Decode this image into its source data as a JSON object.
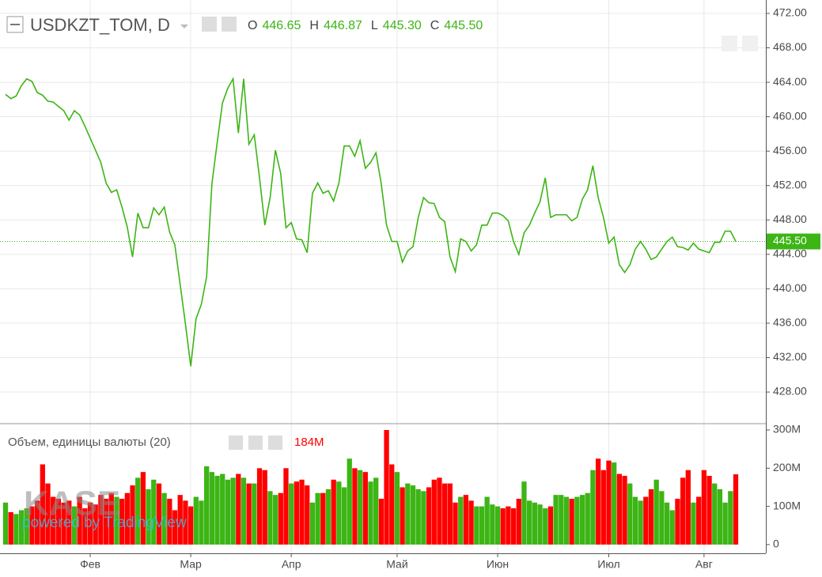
{
  "chart_data": [
    {
      "type": "line",
      "title": "USDKZT_TOM, D",
      "color": "#3cb515",
      "grid": true,
      "ohlc": {
        "labels": [
          "O",
          "H",
          "L",
          "C"
        ],
        "values": [
          446.65,
          446.87,
          445.3,
          445.5
        ],
        "value_labels": [
          "446.65",
          "446.87",
          "445.30",
          "445.50"
        ]
      },
      "categories": [
        null,
        null,
        null,
        null,
        null,
        null,
        null,
        null,
        null,
        null,
        null,
        null,
        null,
        null,
        null,
        null,
        "Фев",
        null,
        null,
        null,
        null,
        null,
        null,
        null,
        null,
        null,
        null,
        null,
        null,
        null,
        null,
        null,
        null,
        null,
        null,
        "Мар",
        null,
        null,
        null,
        null,
        null,
        null,
        null,
        null,
        null,
        null,
        null,
        null,
        null,
        null,
        null,
        null,
        null,
        null,
        "Апр",
        null,
        null,
        null,
        null,
        null,
        null,
        null,
        null,
        null,
        null,
        null,
        null,
        null,
        null,
        null,
        null,
        null,
        null,
        null,
        "Май",
        null,
        null,
        null,
        null,
        null,
        null,
        null,
        null,
        null,
        null,
        null,
        null,
        null,
        null,
        null,
        null,
        null,
        null,
        "Июн",
        null,
        null,
        null,
        null,
        null,
        null,
        null,
        null,
        null,
        null,
        null,
        null,
        null,
        null,
        null,
        null,
        null,
        null,
        null,
        null,
        "Июл",
        null,
        null,
        null,
        null,
        null,
        null,
        null,
        null,
        null,
        null,
        null,
        null,
        null,
        null,
        null,
        null,
        null,
        "Авг",
        null,
        null,
        null,
        null,
        null,
        null
      ],
      "values": [
        462.6,
        462.1,
        462.4,
        463.6,
        464.4,
        464.1,
        462.8,
        462.5,
        461.8,
        461.7,
        461.2,
        460.7,
        459.6,
        460.7,
        460.2,
        458.9,
        457.5,
        456.1,
        454.7,
        452.3,
        451.2,
        451.5,
        449.5,
        447.2,
        443.7,
        448.8,
        447.1,
        447.1,
        449.4,
        448.6,
        449.5,
        446.6,
        445.1,
        440.5,
        435.9,
        431.0,
        436.5,
        438.2,
        441.4,
        452.2,
        457.0,
        461.6,
        463.3,
        464.4,
        458.1,
        464.4,
        456.8,
        457.9,
        452.9,
        447.4,
        450.6,
        456.1,
        453.4,
        447.1,
        447.7,
        445.8,
        445.7,
        444.2,
        451.1,
        452.3,
        451.1,
        451.4,
        450.2,
        452.3,
        456.6,
        456.6,
        455.4,
        457.2,
        454.0,
        454.7,
        455.8,
        452.2,
        447.4,
        445.5,
        445.5,
        443.1,
        444.4,
        444.9,
        448.3,
        450.6,
        450.0,
        449.9,
        448.3,
        447.8,
        443.7,
        442.0,
        445.8,
        445.5,
        444.4,
        445.1,
        447.4,
        447.4,
        448.8,
        448.8,
        448.5,
        447.9,
        445.5,
        444.0,
        446.5,
        447.4,
        448.8,
        450.1,
        452.9,
        448.3,
        448.6,
        448.6,
        448.6,
        447.9,
        448.3,
        450.4,
        451.5,
        454.3,
        450.6,
        448.3,
        445.3,
        446.0,
        442.8,
        441.9,
        442.8,
        444.6,
        445.5,
        444.6,
        443.4,
        443.7,
        444.6,
        445.5,
        446.0,
        444.9,
        444.8,
        444.5,
        445.3,
        444.6,
        444.4,
        444.2,
        445.4,
        445.4,
        446.7,
        446.7,
        445.5
      ],
      "ylim": [
        424.42,
        473.56
      ],
      "yticks": [
        {
          "value": 428,
          "label": "428.00"
        },
        {
          "value": 432,
          "label": "432.00"
        },
        {
          "value": 436,
          "label": "436.00"
        },
        {
          "value": 440,
          "label": "440.00"
        },
        {
          "value": 444,
          "label": "444.00"
        },
        {
          "value": 448,
          "label": "448.00"
        },
        {
          "value": 452,
          "label": "452.00"
        },
        {
          "value": 456,
          "label": "456.00"
        },
        {
          "value": 460,
          "label": "460.00"
        },
        {
          "value": 464,
          "label": "464.00"
        },
        {
          "value": 468,
          "label": "468.00"
        },
        {
          "value": 472,
          "label": "472.00"
        }
      ]
    },
    {
      "type": "bar",
      "title": "Объем, единицы валюты (20)",
      "up_color": "#3cb515",
      "down_color": "#ff0000",
      "last_value_label": "184M",
      "values": [
        110,
        85,
        80,
        90,
        95,
        100,
        115,
        210,
        160,
        125,
        120,
        110,
        115,
        100,
        125,
        95,
        110,
        105,
        130,
        120,
        135,
        125,
        120,
        135,
        155,
        175,
        190,
        145,
        170,
        160,
        135,
        120,
        90,
        130,
        115,
        100,
        125,
        115,
        205,
        190,
        180,
        185,
        170,
        175,
        185,
        175,
        160,
        160,
        200,
        195,
        140,
        130,
        135,
        200,
        160,
        165,
        170,
        155,
        110,
        135,
        135,
        145,
        170,
        165,
        150,
        225,
        200,
        195,
        190,
        165,
        175,
        120,
        300,
        210,
        190,
        150,
        160,
        155,
        145,
        140,
        150,
        170,
        175,
        160,
        160,
        110,
        125,
        130,
        115,
        100,
        100,
        125,
        105,
        100,
        95,
        100,
        95,
        120,
        165,
        115,
        110,
        105,
        95,
        100,
        130,
        130,
        125,
        120,
        125,
        130,
        135,
        195,
        225,
        195,
        220,
        215,
        185,
        180,
        160,
        125,
        115,
        125,
        145,
        170,
        140,
        110,
        90,
        120,
        175,
        195,
        110,
        125,
        195,
        180,
        160,
        145,
        110,
        140,
        184
      ],
      "ylim": [
        -22.8,
        314.5
      ],
      "yticks": [
        0,
        {
          "value": 100,
          "label": "100M"
        },
        {
          "value": 200,
          "label": "200M"
        },
        {
          "value": 300,
          "label": "300M"
        }
      ]
    }
  ],
  "watermark": {
    "logo": "KASE",
    "credit": "powered by TradingView"
  }
}
